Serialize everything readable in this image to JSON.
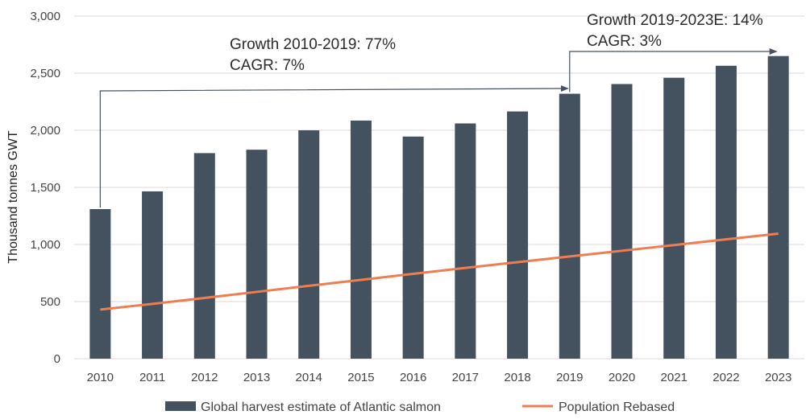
{
  "chart_data": {
    "type": "bar",
    "ylabel": "Thousand tonnes GWT",
    "xlabel": "",
    "ylim": [
      0,
      3000
    ],
    "yticks": [
      0,
      500,
      1000,
      1500,
      2000,
      2500,
      3000
    ],
    "ytick_labels": [
      "0",
      "500",
      "1,000",
      "1,500",
      "2,000",
      "2,500",
      "3,000"
    ],
    "grid": true,
    "legend_position": "bottom",
    "categories": [
      "2010",
      "2011",
      "2012",
      "2013",
      "2014",
      "2015",
      "2016",
      "2017",
      "2018",
      "2019",
      "2020",
      "2021",
      "2022",
      "2023"
    ],
    "series": [
      {
        "name": "Global harvest estimate of Atlantic salmon",
        "type": "bar",
        "color": "#44515e",
        "values": [
          1310,
          1465,
          1800,
          1830,
          2000,
          2085,
          1945,
          2060,
          2165,
          2320,
          2405,
          2460,
          2565,
          2650
        ]
      },
      {
        "name": "Population Rebased",
        "type": "line",
        "color": "#ee7e52",
        "values": [
          430,
          480,
          532,
          585,
          638,
          690,
          743,
          795,
          845,
          895,
          945,
          995,
          1045,
          1095
        ]
      }
    ],
    "annotations": [
      {
        "lines": [
          "Growth 2010-2019: 77%",
          "CAGR: 7%"
        ],
        "from": "2010",
        "to": "2019"
      },
      {
        "lines": [
          "Growth 2019-2023E: 14%",
          "CAGR: 3%"
        ],
        "from": "2019",
        "to": "2023"
      }
    ]
  }
}
